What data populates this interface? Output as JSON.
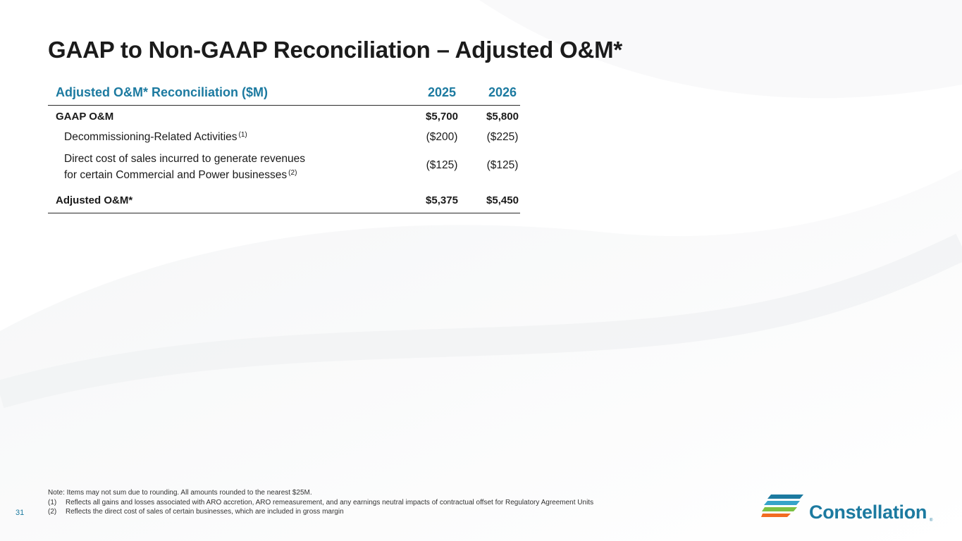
{
  "slide": {
    "title": "GAAP to Non-GAAP Reconciliation – Adjusted O&M*",
    "page_number": "31"
  },
  "table": {
    "header": {
      "label": "Adjusted O&M* Reconciliation ($M)",
      "col1": "2025",
      "col2": "2026"
    },
    "rows": [
      {
        "label": "GAAP O&M",
        "v2025": "$5,700",
        "v2026": "$5,800"
      },
      {
        "label": "Decommissioning-Related Activities",
        "sup": "(1)",
        "v2025": "($200)",
        "v2026": "($225)"
      },
      {
        "label_line1": "Direct cost of sales incurred to generate revenues",
        "label_line2": "for certain Commercial and Power businesses",
        "sup": "(2)",
        "v2025": "($125)",
        "v2026": "($125)"
      },
      {
        "label": "Adjusted O&M*",
        "v2025": "$5,375",
        "v2026": "$5,450"
      }
    ]
  },
  "notes": {
    "note": "Note: Items may not sum due to rounding. All amounts rounded to the nearest $25M.",
    "footnotes": [
      {
        "marker": "(1)",
        "text": "Reflects all gains and losses associated with ARO accretion, ARO remeasurement, and any earnings neutral impacts of contractual offset for Regulatory Agreement Units"
      },
      {
        "marker": "(2)",
        "text": "Reflects the direct cost of sales of certain businesses, which are included in gross margin"
      }
    ]
  },
  "logo": {
    "name": "Constellation",
    "reg": "®",
    "stripe_colors": [
      "#1c7aa0",
      "#36a4c9",
      "#7cc143",
      "#f26b21"
    ]
  },
  "colors": {
    "accent": "#1c7aa0",
    "title": "#1b1b1b"
  }
}
